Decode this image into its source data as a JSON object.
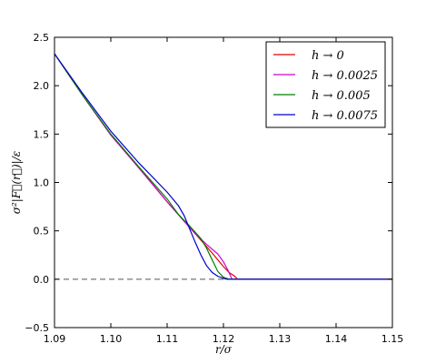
{
  "chart_data": {
    "type": "line",
    "title": "",
    "xlabel": "r/σ",
    "ylabel": "σ²|F⃗(r⃗)|/ε",
    "xlim": [
      1.09,
      1.15
    ],
    "ylim": [
      -0.5,
      2.5
    ],
    "x_ticks": [
      1.09,
      1.1,
      1.11,
      1.12,
      1.13,
      1.14,
      1.15
    ],
    "x_tick_labels": [
      "1.09",
      "1.10",
      "1.11",
      "1.12",
      "1.13",
      "1.14",
      "1.15"
    ],
    "y_ticks": [
      -0.5,
      0.0,
      0.5,
      1.0,
      1.5,
      2.0,
      2.5
    ],
    "y_tick_labels": [
      "−0.5",
      "0.0",
      "0.5",
      "1.0",
      "1.5",
      "2.0",
      "2.5"
    ],
    "grid": false,
    "legend_position": "top-right",
    "reference_line": {
      "y": 0.0,
      "style": "dashed",
      "color": "#555555"
    },
    "series": [
      {
        "name": "h → 0",
        "color": "#e00000",
        "x": [
          1.09,
          1.095,
          1.1,
          1.105,
          1.11,
          1.115,
          1.118,
          1.12,
          1.121,
          1.122,
          1.1225,
          1.125,
          1.13,
          1.14,
          1.15
        ],
        "y": [
          2.33,
          1.9,
          1.49,
          1.15,
          0.8,
          0.47,
          0.27,
          0.13,
          0.07,
          0.03,
          0.0,
          0.0,
          0.0,
          0.0,
          0.0
        ]
      },
      {
        "name": "h → 0.0025",
        "color": "#cc00cc",
        "x": [
          1.09,
          1.095,
          1.1,
          1.105,
          1.11,
          1.113,
          1.115,
          1.117,
          1.119,
          1.12,
          1.121,
          1.1215,
          1.125,
          1.13,
          1.14,
          1.15
        ],
        "y": [
          2.33,
          1.9,
          1.49,
          1.15,
          0.8,
          0.6,
          0.47,
          0.36,
          0.26,
          0.18,
          0.07,
          0.0,
          0.0,
          0.0,
          0.0,
          0.0
        ]
      },
      {
        "name": "h → 0.005",
        "color": "#008000",
        "x": [
          1.09,
          1.095,
          1.1,
          1.105,
          1.11,
          1.112,
          1.114,
          1.116,
          1.117,
          1.118,
          1.119,
          1.12,
          1.121,
          1.125,
          1.13,
          1.14,
          1.15
        ],
        "y": [
          2.33,
          1.9,
          1.5,
          1.16,
          0.83,
          0.67,
          0.55,
          0.42,
          0.32,
          0.2,
          0.08,
          0.02,
          0.0,
          0.0,
          0.0,
          0.0,
          0.0
        ]
      },
      {
        "name": "h → 0.0075",
        "color": "#0000cc",
        "x": [
          1.09,
          1.095,
          1.1,
          1.105,
          1.11,
          1.112,
          1.113,
          1.114,
          1.115,
          1.116,
          1.117,
          1.118,
          1.119,
          1.12,
          1.1205,
          1.121,
          1.125,
          1.13,
          1.14,
          1.15
        ],
        "y": [
          2.33,
          1.92,
          1.53,
          1.2,
          0.9,
          0.76,
          0.66,
          0.52,
          0.38,
          0.25,
          0.14,
          0.07,
          0.03,
          0.01,
          0.0,
          0.0,
          0.0,
          0.0,
          0.0,
          0.0
        ]
      }
    ]
  }
}
